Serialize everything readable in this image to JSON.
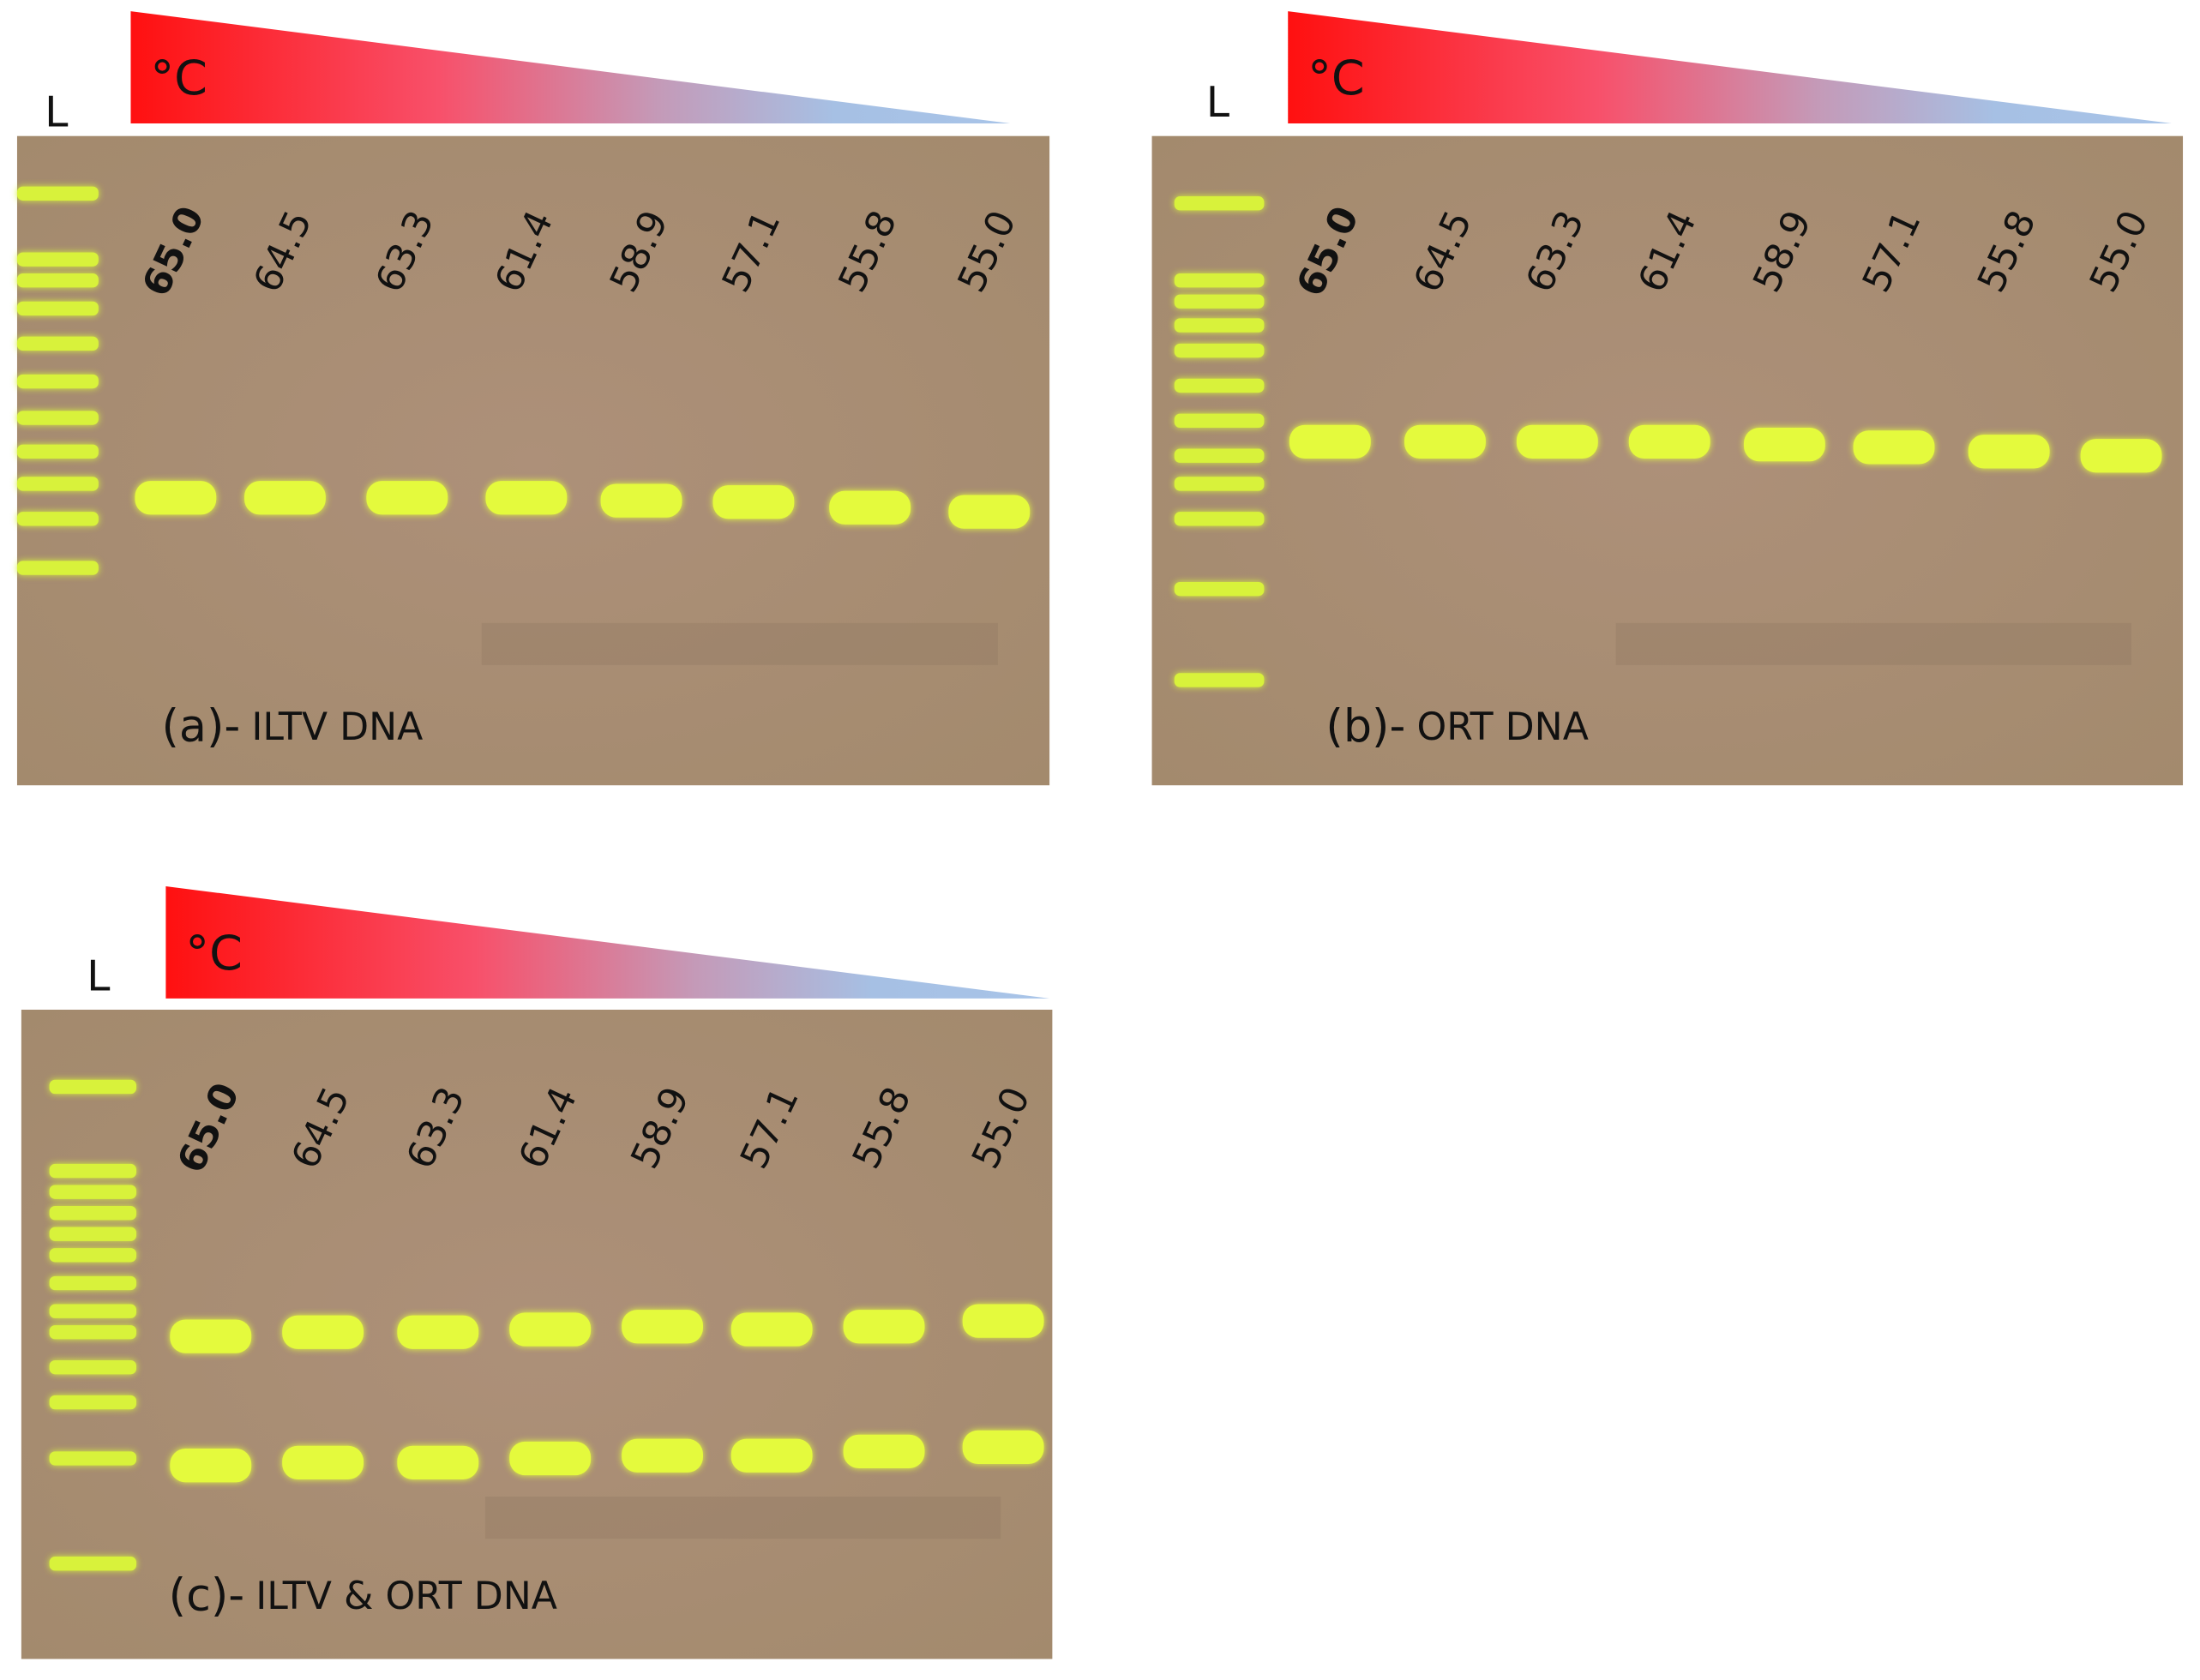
{
  "panels": [
    {
      "ladder_label": "L",
      "temperature_label": "°C",
      "lanes": [
        "65.0",
        "64.5",
        "63.3",
        "61.4",
        "58.9",
        "57.1",
        "55.8",
        "55.0"
      ],
      "panel_label": "(a)-",
      "caption": "ILTV DNA"
    },
    {
      "ladder_label": "L",
      "temperature_label": "°C",
      "lanes": [
        "65.0",
        "64.5",
        "63.3",
        "61.4",
        "58.9",
        "57.1",
        "55.8",
        "55.0"
      ],
      "panel_label": "(b)-",
      "caption": "ORT DNA"
    },
    {
      "ladder_label": "L",
      "temperature_label": "°C",
      "lanes": [
        "65.0",
        "64.5",
        "63.3",
        "61.4",
        "58.9",
        "57.1",
        "55.8",
        "55.0"
      ],
      "panel_label": "(c)-",
      "caption": "ILTV & ORT DNA"
    }
  ]
}
